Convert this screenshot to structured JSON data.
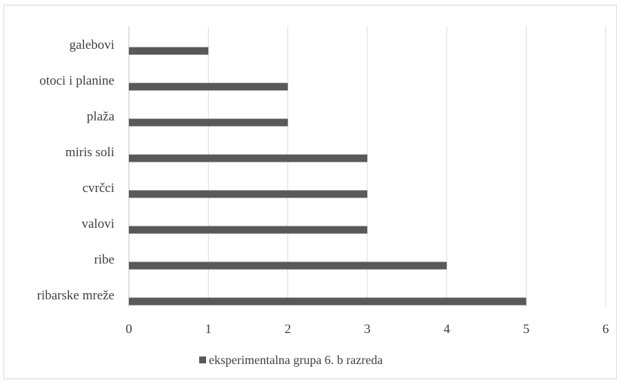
{
  "chart_data": {
    "type": "bar",
    "orientation": "horizontal",
    "categories": [
      "galebovi",
      "otoci i planine",
      "plaža",
      "miris soli",
      "cvrčci",
      "valovi",
      "ribe",
      "ribarske mreže"
    ],
    "series": [
      {
        "name": "eksperimentalna grupa 6. b razreda",
        "values": [
          1,
          2,
          2,
          3,
          3,
          3,
          4,
          5
        ],
        "color": "#595959"
      }
    ],
    "xlim": [
      0,
      6
    ],
    "x_ticks": [
      "0",
      "1",
      "2",
      "3",
      "4",
      "5",
      "6"
    ],
    "grid": "vertical",
    "legend": "bottom"
  }
}
